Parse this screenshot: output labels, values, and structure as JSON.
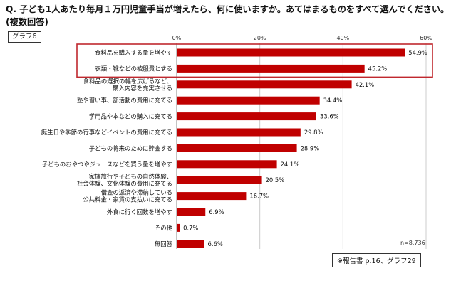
{
  "question": "Q. 子ども1人あたり毎月１万円児童手当が増えたら、何に使いますか。あてはまるものをすべて選んでください。(複数回答)",
  "graph_label": "グラフ6",
  "n_label": "n=8,736",
  "source": "※報告書 p.16、グラフ29",
  "highlight": {
    "color": "#c0282e",
    "rows": [
      0,
      1
    ]
  },
  "colors": {
    "bar": "#c00000",
    "grid": "#cccccc"
  },
  "chart_data": {
    "type": "bar",
    "orientation": "horizontal",
    "xlim": [
      0,
      60
    ],
    "tick_labels": [
      "0%",
      "20%",
      "40%",
      "60%"
    ],
    "ticks": [
      0,
      20,
      40,
      60
    ],
    "grid": true,
    "categories": [
      [
        "食料品を購入する量を増やす"
      ],
      [
        "衣類・靴などの被服費とする"
      ],
      [
        "食料品の選択の幅を広げるなど、",
        "購入内容を充実させる"
      ],
      [
        "塾や習い事、部活動の費用に充てる"
      ],
      [
        "学用品や本などの購入に充てる"
      ],
      [
        "誕生日や季節の行事などイベントの費用に充てる"
      ],
      [
        "子どもの将来のために貯金する"
      ],
      [
        "子どものおやつやジュースなどを買う量を増やす"
      ],
      [
        "家族旅行や子どもの自然体験、",
        "社会体験、文化体験の費用に充てる"
      ],
      [
        "借金の返済や滞納している",
        "公共料金・家賃の支払いに充てる"
      ],
      [
        "外食に行く回数を増やす"
      ],
      [
        "その他"
      ],
      [
        "無回答"
      ]
    ],
    "values": [
      54.9,
      45.2,
      42.1,
      34.4,
      33.6,
      29.8,
      28.9,
      24.1,
      20.5,
      16.7,
      6.9,
      0.7,
      6.6
    ],
    "value_labels": [
      "54.9%",
      "45.2%",
      "42.1%",
      "34.4%",
      "33.6%",
      "29.8%",
      "28.9%",
      "24.1%",
      "20.5%",
      "16.7%",
      "6.9%",
      "0.7%",
      "6.6%"
    ]
  }
}
